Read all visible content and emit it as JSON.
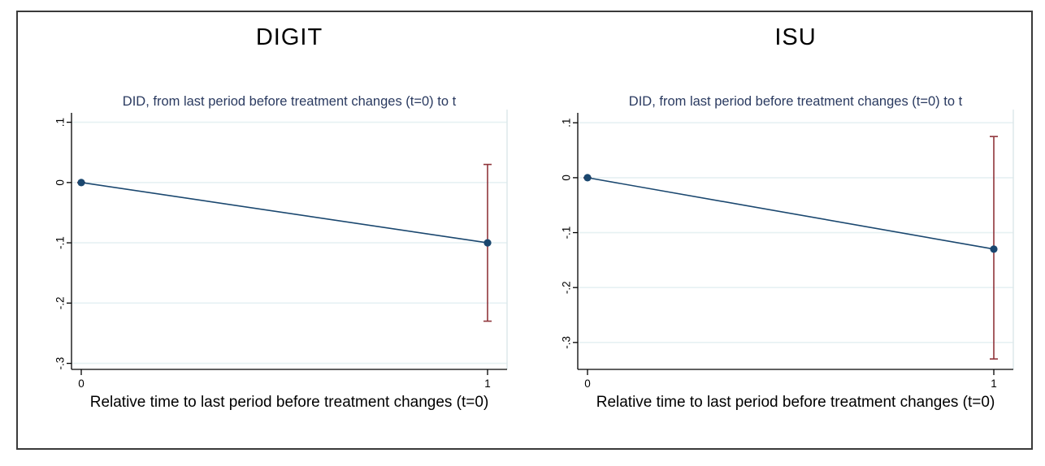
{
  "figure": {
    "border_color": "#3a3a3a",
    "background": "#ffffff"
  },
  "colors": {
    "line": "#1a476f",
    "marker": "#1a476f",
    "error_bar": "#90353b",
    "grid": "#e6f1f3",
    "plot_edge": "#dce6e9",
    "axis": "#000000",
    "subtitle_text": "#2a3a60",
    "title_text": "#000000"
  },
  "chart_data": [
    {
      "type": "line",
      "panel_title": "DIGIT",
      "title": "DID, from last period before treatment changes (t=0) to t",
      "xlabel": "Relative time to last period before treatment changes (t=0)",
      "x": [
        0,
        1
      ],
      "y": [
        0,
        -0.1
      ],
      "ci_low": [
        0,
        -0.23
      ],
      "ci_high": [
        0,
        0.03
      ],
      "xtick_values": [
        0,
        1
      ],
      "xtick_labels": [
        "0",
        "1"
      ],
      "ytick_values": [
        0.1,
        0,
        -0.1,
        -0.2,
        -0.3
      ],
      "ytick_labels": [
        ".1",
        "0",
        "-.1",
        "-.2",
        "-.3"
      ],
      "xlim": [
        -0.024,
        1.048
      ],
      "ylim": [
        -0.31,
        0.121
      ],
      "grid": "horizontal",
      "legend": "none"
    },
    {
      "type": "line",
      "panel_title": "ISU",
      "title": "DID, from last period before treatment changes (t=0) to t",
      "xlabel": "Relative time to last period before treatment changes (t=0)",
      "x": [
        0,
        1
      ],
      "y": [
        0,
        -0.13
      ],
      "ci_low": [
        0,
        -0.33
      ],
      "ci_high": [
        0,
        0.075
      ],
      "xtick_values": [
        0,
        1
      ],
      "xtick_labels": [
        "0",
        "1"
      ],
      "ytick_values": [
        0.1,
        0,
        -0.1,
        -0.2,
        -0.3
      ],
      "ytick_labels": [
        ".1",
        "0",
        "-.1",
        "-.2",
        "-.3"
      ],
      "xlim": [
        -0.024,
        1.048
      ],
      "ylim": [
        -0.349,
        0.124
      ],
      "grid": "horizontal",
      "legend": "none"
    }
  ]
}
